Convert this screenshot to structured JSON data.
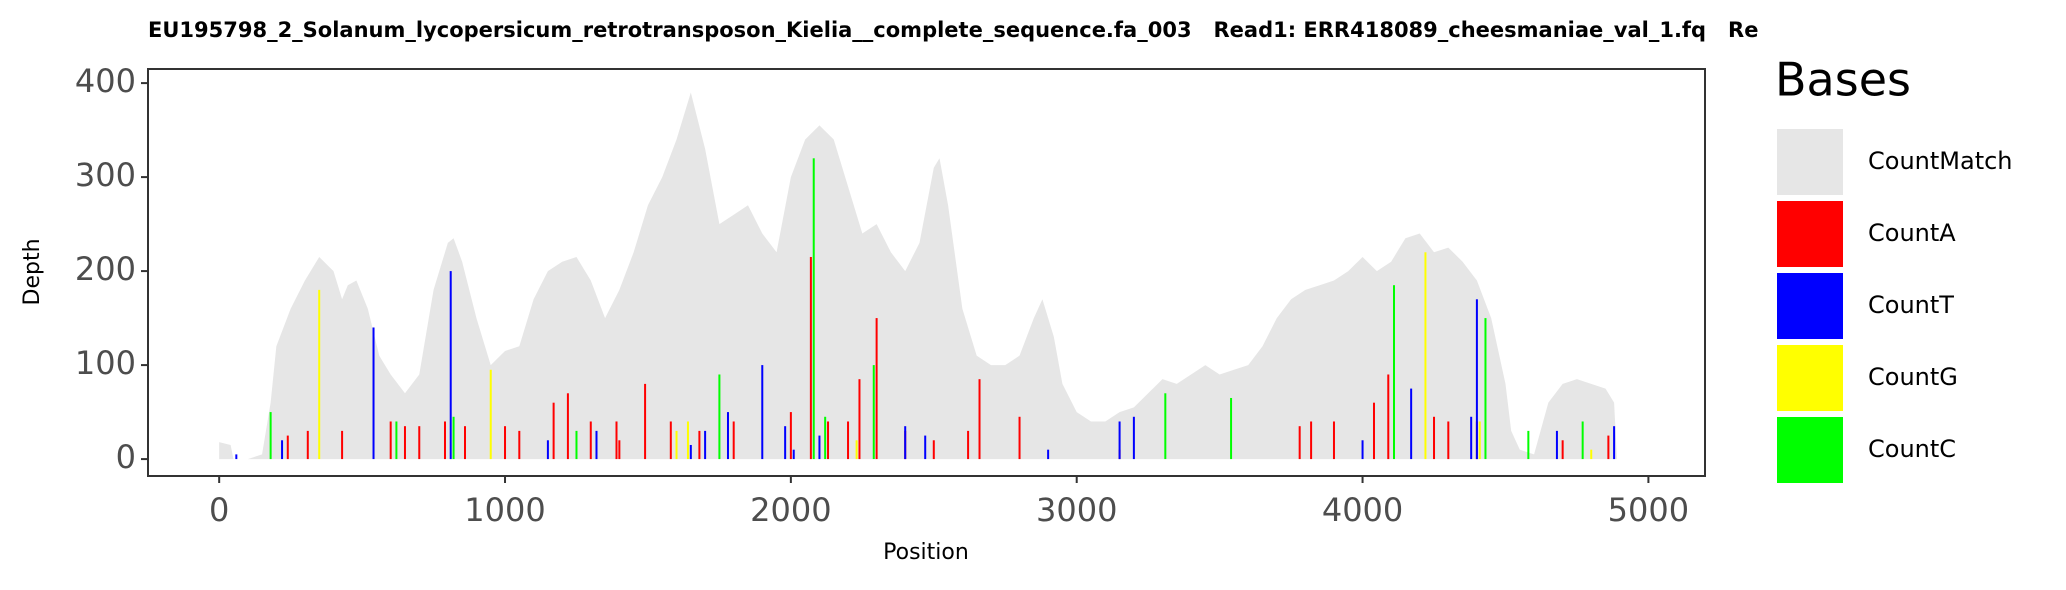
{
  "chart_data": {
    "type": "area",
    "title": "EU195798_2_Solanum_lycopersicum_retrotransposon_Kielia__complete_sequence.fa_003   Read1: ERR418089_cheesmaniae_val_1.fq   Re",
    "x_label": "Position",
    "y_label": "Depth",
    "legend_title": "Bases",
    "legend_position": "right",
    "xlim": [
      -249,
      5198
    ],
    "ylim": [
      -18,
      415
    ],
    "xticks": [
      0,
      1000,
      2000,
      3000,
      4000,
      5000
    ],
    "yticks": [
      0,
      100,
      200,
      300,
      400
    ],
    "series": [
      {
        "name": "CountMatch",
        "color": "#e6e6e6",
        "type": "area",
        "x": [
          0,
          40,
          50,
          100,
          150,
          180,
          200,
          250,
          300,
          350,
          400,
          430,
          450,
          480,
          520,
          560,
          600,
          650,
          700,
          750,
          800,
          820,
          850,
          900,
          950,
          1000,
          1050,
          1100,
          1150,
          1200,
          1250,
          1300,
          1350,
          1400,
          1450,
          1500,
          1550,
          1600,
          1650,
          1700,
          1750,
          1800,
          1850,
          1900,
          1950,
          2000,
          2050,
          2100,
          2150,
          2200,
          2250,
          2300,
          2350,
          2400,
          2450,
          2500,
          2520,
          2550,
          2600,
          2650,
          2700,
          2750,
          2800,
          2850,
          2880,
          2920,
          2950,
          3000,
          3050,
          3100,
          3150,
          3200,
          3250,
          3300,
          3350,
          3400,
          3450,
          3500,
          3550,
          3600,
          3650,
          3700,
          3750,
          3800,
          3850,
          3900,
          3950,
          4000,
          4050,
          4100,
          4150,
          4200,
          4250,
          4300,
          4350,
          4400,
          4450,
          4500,
          4520,
          4550,
          4600,
          4650,
          4700,
          4750,
          4800,
          4850,
          4880,
          4890
        ],
        "values": [
          18,
          15,
          0,
          0,
          5,
          60,
          120,
          160,
          190,
          215,
          200,
          170,
          185,
          190,
          160,
          110,
          90,
          70,
          90,
          180,
          230,
          235,
          210,
          150,
          100,
          115,
          120,
          170,
          200,
          210,
          215,
          190,
          150,
          180,
          220,
          270,
          300,
          340,
          390,
          330,
          250,
          260,
          270,
          240,
          220,
          300,
          340,
          355,
          340,
          290,
          240,
          250,
          220,
          200,
          230,
          310,
          320,
          270,
          160,
          110,
          100,
          100,
          110,
          150,
          170,
          130,
          80,
          50,
          40,
          40,
          50,
          55,
          70,
          85,
          80,
          90,
          100,
          90,
          95,
          100,
          120,
          150,
          170,
          180,
          185,
          190,
          200,
          215,
          200,
          210,
          235,
          240,
          220,
          225,
          210,
          190,
          150,
          80,
          30,
          10,
          5,
          60,
          80,
          85,
          80,
          75,
          60,
          0
        ]
      },
      {
        "name": "CountA",
        "color": "#ff0000",
        "type": "bar",
        "x": [
          240,
          310,
          430,
          600,
          650,
          700,
          790,
          860,
          1000,
          1050,
          1170,
          1220,
          1300,
          1390,
          1400,
          1490,
          1580,
          1680,
          1800,
          2000,
          2070,
          2130,
          2200,
          2240,
          2300,
          2400,
          2500,
          2620,
          2660,
          2800,
          3150,
          3780,
          3820,
          3900,
          4040,
          4090,
          4250,
          4300,
          4400,
          4700,
          4860
        ],
        "values": [
          25,
          30,
          30,
          40,
          35,
          35,
          40,
          35,
          35,
          30,
          60,
          70,
          40,
          40,
          20,
          80,
          40,
          30,
          40,
          50,
          215,
          40,
          40,
          85,
          150,
          30,
          20,
          30,
          85,
          45,
          10,
          35,
          40,
          40,
          60,
          90,
          45,
          40,
          40,
          20,
          25
        ]
      },
      {
        "name": "CountT",
        "color": "#0000ff",
        "type": "bar",
        "x": [
          60,
          220,
          540,
          810,
          1150,
          1320,
          1650,
          1700,
          1780,
          1900,
          1980,
          2010,
          2100,
          2400,
          2470,
          2900,
          3150,
          3200,
          4000,
          4170,
          4380,
          4400,
          4680,
          4880
        ],
        "values": [
          5,
          20,
          140,
          200,
          20,
          30,
          15,
          30,
          50,
          100,
          35,
          10,
          25,
          35,
          25,
          10,
          40,
          45,
          20,
          75,
          45,
          170,
          30,
          35
        ]
      },
      {
        "name": "CountG",
        "color": "#ffff00",
        "type": "bar",
        "x": [
          350,
          950,
          1600,
          1640,
          2230,
          4220,
          4410,
          4800
        ],
        "values": [
          180,
          95,
          30,
          40,
          20,
          220,
          40,
          10
        ]
      },
      {
        "name": "CountC",
        "color": "#00ff00",
        "type": "bar",
        "x": [
          180,
          620,
          820,
          1250,
          1750,
          2080,
          2120,
          2290,
          3310,
          3540,
          4110,
          4430,
          4580,
          4770
        ],
        "values": [
          50,
          40,
          45,
          30,
          90,
          320,
          45,
          100,
          70,
          65,
          185,
          150,
          30,
          40
        ]
      }
    ]
  }
}
